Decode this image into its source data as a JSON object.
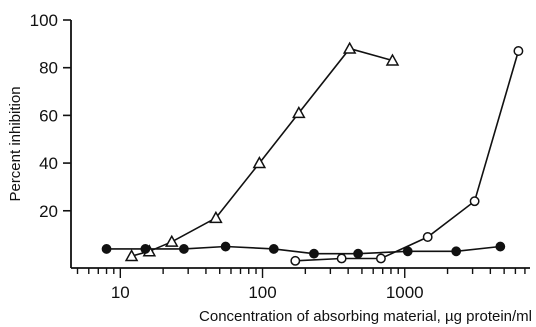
{
  "chart_data": {
    "type": "line",
    "title": "",
    "xlabel": "Concentration of absorbing material, µg protein/ml",
    "ylabel": "Percent inhibition",
    "x_scale": "log",
    "xlim": [
      4.5,
      7600
    ],
    "ylim": [
      -4,
      100
    ],
    "x_major_ticks": [
      10,
      100,
      1000
    ],
    "x_tick_labels": [
      "10",
      "100",
      "1000"
    ],
    "y_ticks": [
      20,
      40,
      60,
      80,
      100
    ],
    "y_tick_labels": [
      "20",
      "40",
      "60",
      "80",
      "100"
    ],
    "grid": false,
    "legend": "none",
    "series": [
      {
        "marker": "triangle-open",
        "x": [
          12,
          16,
          23,
          47,
          95,
          180,
          410,
          820
        ],
        "y": [
          1,
          3,
          7,
          17,
          40,
          61,
          88,
          83
        ]
      },
      {
        "marker": "circle-open",
        "x": [
          170,
          360,
          680,
          1450,
          3100,
          6300
        ],
        "y": [
          -1,
          0,
          0,
          9,
          24,
          87
        ]
      },
      {
        "marker": "circle-filled",
        "x": [
          8,
          15,
          28,
          55,
          120,
          230,
          470,
          1050,
          2300,
          4700
        ],
        "y": [
          4,
          4,
          4,
          5,
          4,
          2,
          2,
          3,
          3,
          5
        ]
      }
    ]
  }
}
